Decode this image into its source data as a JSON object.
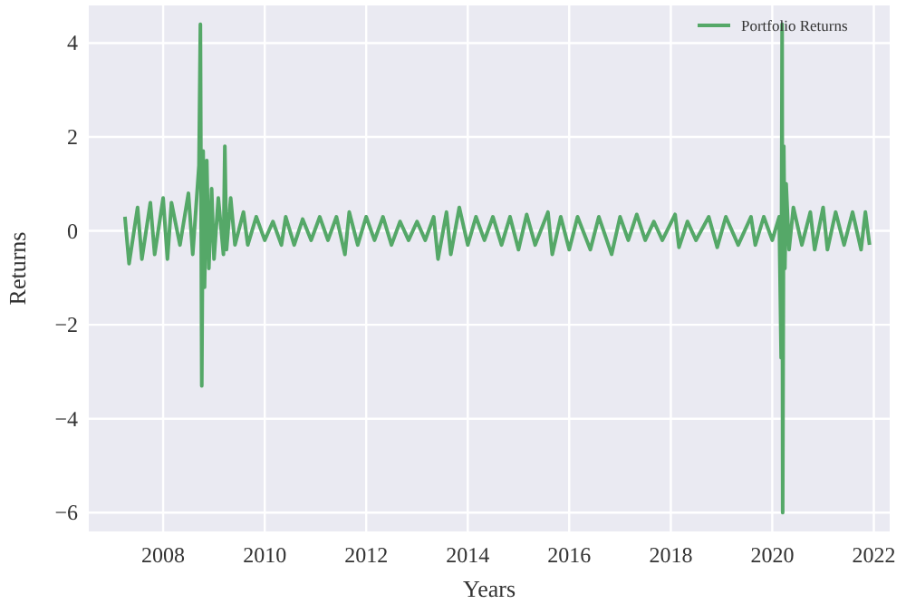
{
  "chart_data": {
    "type": "line",
    "xlabel": "Years",
    "ylabel": "Returns",
    "x": [
      "2007-04",
      "2007-05",
      "2007-07",
      "2007-08",
      "2007-10",
      "2007-11",
      "2008-01",
      "2008-02",
      "2008-03",
      "2008-05",
      "2008-07",
      "2008-08",
      "2008-09-15",
      "2008-09-25",
      "2008-10-05",
      "2008-10-15",
      "2008-10-25",
      "2008-11-10",
      "2008-11-25",
      "2008-12-15",
      "2009-01",
      "2009-02",
      "2009-03-10",
      "2009-03-20",
      "2009-04",
      "2009-05",
      "2009-06",
      "2009-08",
      "2009-09",
      "2009-11",
      "2010-01",
      "2010-03",
      "2010-05",
      "2010-06",
      "2010-08",
      "2010-10",
      "2010-12",
      "2011-02",
      "2011-04",
      "2011-06",
      "2011-08",
      "2011-09",
      "2011-11",
      "2012-01",
      "2012-03",
      "2012-05",
      "2012-07",
      "2012-09",
      "2012-11",
      "2013-01",
      "2013-03",
      "2013-05",
      "2013-06",
      "2013-08",
      "2013-09",
      "2013-11",
      "2014-01",
      "2014-03",
      "2014-05",
      "2014-07",
      "2014-09",
      "2014-11",
      "2015-01",
      "2015-03",
      "2015-05",
      "2015-08",
      "2015-09",
      "2015-11",
      "2016-01",
      "2016-03",
      "2016-06",
      "2016-08",
      "2016-11",
      "2017-01",
      "2017-03",
      "2017-05",
      "2017-07",
      "2017-09",
      "2017-11",
      "2018-02",
      "2018-03",
      "2018-05",
      "2018-07",
      "2018-10",
      "2018-12",
      "2019-02",
      "2019-05",
      "2019-08",
      "2019-09",
      "2019-11",
      "2020-01",
      "2020-02-20",
      "2020-03-05",
      "2020-03-12",
      "2020-03-16",
      "2020-03-24",
      "2020-04-01",
      "2020-04-10",
      "2020-05",
      "2020-06",
      "2020-08",
      "2020-10",
      "2020-11",
      "2021-01",
      "2021-02",
      "2021-04",
      "2021-06",
      "2021-08",
      "2021-10",
      "2021-11",
      "2021-12"
    ],
    "series": [
      {
        "name": "Portfolio Returns",
        "color": "#55a868",
        "values": [
          0.3,
          -0.7,
          0.5,
          -0.6,
          0.6,
          -0.5,
          0.7,
          -0.6,
          0.6,
          -0.3,
          0.8,
          -0.5,
          1.4,
          4.4,
          -3.3,
          1.7,
          -1.2,
          1.5,
          -0.8,
          0.9,
          -0.6,
          0.7,
          -0.5,
          1.8,
          -0.4,
          0.7,
          -0.3,
          0.4,
          -0.3,
          0.3,
          -0.2,
          0.2,
          -0.3,
          0.3,
          -0.3,
          0.25,
          -0.2,
          0.3,
          -0.2,
          0.3,
          -0.5,
          0.4,
          -0.3,
          0.3,
          -0.2,
          0.3,
          -0.3,
          0.2,
          -0.2,
          0.2,
          -0.2,
          0.3,
          -0.6,
          0.4,
          -0.5,
          0.5,
          -0.3,
          0.3,
          -0.2,
          0.3,
          -0.3,
          0.3,
          -0.4,
          0.35,
          -0.3,
          0.4,
          -0.5,
          0.3,
          -0.4,
          0.3,
          -0.4,
          0.3,
          -0.5,
          0.3,
          -0.2,
          0.35,
          -0.2,
          0.2,
          -0.2,
          0.35,
          -0.35,
          0.2,
          -0.2,
          0.3,
          -0.35,
          0.3,
          -0.3,
          0.3,
          -0.3,
          0.3,
          -0.2,
          0.3,
          -2.7,
          4.4,
          -6.0,
          1.8,
          -0.8,
          1.0,
          -0.4,
          0.5,
          -0.3,
          0.4,
          -0.4,
          0.5,
          -0.4,
          0.4,
          -0.3,
          0.4,
          -0.4,
          0.4,
          -0.3
        ]
      }
    ],
    "xlim": [
      "2006-07-15",
      "2022-04-25"
    ],
    "xticks": [
      "2008",
      "2010",
      "2012",
      "2014",
      "2016",
      "2018",
      "2020",
      "2022"
    ],
    "ylim": [
      -6.4,
      4.8
    ],
    "yticks": [
      -6,
      -4,
      -2,
      0,
      2,
      4
    ],
    "grid": true,
    "legend": "top right",
    "marker": "none",
    "line_style": "solid"
  }
}
